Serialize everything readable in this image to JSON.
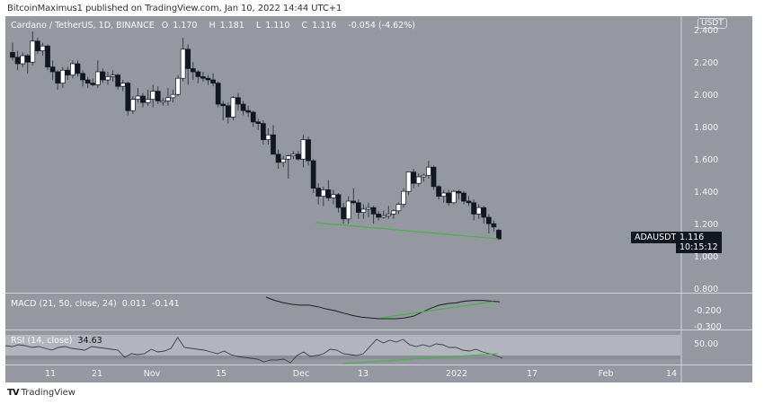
{
  "header": {
    "published": "BitcoinMaximus1 published on TradingView.com, Jan 10, 2022 14:44 UTC+1"
  },
  "legend": {
    "symbol": "Cardano / TetherUS, 1D, BINANCE",
    "open_label": "O",
    "open": "1.170",
    "high_label": "H",
    "high": "1.181",
    "low_label": "L",
    "low": "1.110",
    "close_label": "C",
    "close": "1.116",
    "change": "-0.054 (-4.62%)"
  },
  "price_axis": {
    "currency_badge": "USDT",
    "ticks": [
      "2.400",
      "2.200",
      "2.000",
      "1.800",
      "1.600",
      "1.400",
      "1.200",
      "1.000",
      "0.800"
    ],
    "current_symbol": "ADAUSDT",
    "current_price": "1.116",
    "countdown": "10:15:12"
  },
  "macd": {
    "label": "MACD (21, 50, close, 24)",
    "value1": "0.011",
    "value2": "-0.141",
    "axis_ticks": [
      "-0.200",
      "-0.300"
    ]
  },
  "rsi": {
    "label": "RSI (14, close)",
    "value": "34.63",
    "axis_ticks": [
      "50.00"
    ]
  },
  "time_axis": {
    "ticks": [
      "11",
      "21",
      "Nov",
      "15",
      "Dec",
      "13",
      "2022",
      "17",
      "Feb",
      "14"
    ]
  },
  "footer": {
    "logo_mark": "TV",
    "logo_text": "TradingView"
  },
  "colors": {
    "background": "#9598a1",
    "bull_body": "#ffffff",
    "bear_body": "#131722",
    "wick": "#3a3d45",
    "trendline": "#4caf50",
    "indicator_line": "#1e1e1e"
  },
  "chart_data": [
    {
      "type": "candlestick",
      "title": "Cardano / TetherUS, 1D, BINANCE",
      "xlabel": "",
      "ylabel": "USDT",
      "x_ticks": [
        "11",
        "21",
        "Nov",
        "15",
        "Dec",
        "13",
        "2022",
        "17",
        "Feb",
        "14"
      ],
      "ylim": [
        0.8,
        2.45
      ],
      "y_ticks": [
        2.4,
        2.2,
        2.0,
        1.8,
        1.6,
        1.4,
        1.2,
        1.0,
        0.8
      ],
      "candles": [
        [
          2.27,
          2.33,
          2.22,
          2.24
        ],
        [
          2.24,
          2.28,
          2.16,
          2.2
        ],
        [
          2.2,
          2.27,
          2.18,
          2.25
        ],
        [
          2.25,
          2.26,
          2.14,
          2.21
        ],
        [
          2.21,
          2.4,
          2.19,
          2.34
        ],
        [
          2.34,
          2.36,
          2.26,
          2.28
        ],
        [
          2.28,
          2.33,
          2.25,
          2.31
        ],
        [
          2.31,
          2.32,
          2.16,
          2.18
        ],
        [
          2.18,
          2.22,
          2.1,
          2.15
        ],
        [
          2.15,
          2.16,
          2.04,
          2.08
        ],
        [
          2.08,
          2.18,
          2.05,
          2.16
        ],
        [
          2.16,
          2.18,
          2.1,
          2.13
        ],
        [
          2.13,
          2.22,
          2.11,
          2.2
        ],
        [
          2.2,
          2.22,
          2.12,
          2.14
        ],
        [
          2.14,
          2.16,
          2.06,
          2.1
        ],
        [
          2.1,
          2.12,
          2.05,
          2.08
        ],
        [
          2.08,
          2.11,
          2.06,
          2.07
        ],
        [
          2.07,
          2.22,
          2.05,
          2.15
        ],
        [
          2.15,
          2.17,
          2.08,
          2.1
        ],
        [
          2.1,
          2.15,
          2.07,
          2.12
        ],
        [
          2.12,
          2.16,
          2.09,
          2.13
        ],
        [
          2.13,
          2.14,
          2.04,
          2.06
        ],
        [
          2.06,
          2.1,
          2.03,
          2.08
        ],
        [
          2.08,
          2.09,
          1.88,
          1.91
        ],
        [
          1.91,
          2.0,
          1.89,
          1.98
        ],
        [
          1.98,
          2.05,
          1.96,
          2.0
        ],
        [
          2.0,
          2.02,
          1.93,
          1.96
        ],
        [
          1.96,
          2.04,
          1.94,
          1.98
        ],
        [
          1.98,
          2.07,
          1.93,
          2.03
        ],
        [
          2.03,
          2.06,
          1.95,
          1.97
        ],
        [
          1.97,
          1.99,
          1.94,
          1.97
        ],
        [
          1.97,
          2.05,
          1.94,
          1.99
        ],
        [
          1.99,
          2.04,
          1.96,
          2.01
        ],
        [
          2.01,
          2.13,
          2.0,
          2.11
        ],
        [
          2.11,
          2.36,
          2.09,
          2.29
        ],
        [
          2.29,
          2.32,
          2.07,
          2.17
        ],
        [
          2.17,
          2.21,
          2.1,
          2.15
        ],
        [
          2.15,
          2.16,
          2.08,
          2.12
        ],
        [
          2.12,
          2.15,
          2.09,
          2.11
        ],
        [
          2.11,
          2.13,
          2.07,
          2.1
        ],
        [
          2.1,
          2.14,
          2.06,
          2.08
        ],
        [
          2.08,
          2.09,
          1.93,
          1.95
        ],
        [
          1.95,
          1.97,
          1.85,
          1.94
        ],
        [
          1.94,
          1.96,
          1.83,
          1.87
        ],
        [
          1.87,
          2.0,
          1.85,
          1.99
        ],
        [
          1.99,
          2.02,
          1.91,
          1.95
        ],
        [
          1.95,
          1.97,
          1.88,
          1.91
        ],
        [
          1.91,
          1.94,
          1.87,
          1.9
        ],
        [
          1.9,
          1.91,
          1.81,
          1.84
        ],
        [
          1.84,
          1.86,
          1.79,
          1.83
        ],
        [
          1.83,
          1.85,
          1.7,
          1.73
        ],
        [
          1.73,
          1.8,
          1.7,
          1.76
        ],
        [
          1.76,
          1.82,
          1.68,
          1.64
        ],
        [
          1.64,
          1.67,
          1.55,
          1.59
        ],
        [
          1.59,
          1.63,
          1.56,
          1.61
        ],
        [
          1.61,
          1.64,
          1.49,
          1.63
        ],
        [
          1.63,
          1.66,
          1.61,
          1.64
        ],
        [
          1.64,
          1.66,
          1.6,
          1.61
        ],
        [
          1.61,
          1.76,
          1.56,
          1.73
        ],
        [
          1.73,
          1.75,
          1.57,
          1.6
        ],
        [
          1.6,
          1.61,
          1.4,
          1.43
        ],
        [
          1.43,
          1.46,
          1.33,
          1.38
        ],
        [
          1.38,
          1.44,
          1.32,
          1.42
        ],
        [
          1.42,
          1.48,
          1.35,
          1.37
        ],
        [
          1.37,
          1.42,
          1.33,
          1.39
        ],
        [
          1.39,
          1.4,
          1.28,
          1.31
        ],
        [
          1.31,
          1.34,
          1.21,
          1.24
        ],
        [
          1.24,
          1.38,
          1.21,
          1.35
        ],
        [
          1.35,
          1.43,
          1.33,
          1.34
        ],
        [
          1.34,
          1.36,
          1.24,
          1.28
        ],
        [
          1.28,
          1.33,
          1.24,
          1.3
        ],
        [
          1.3,
          1.34,
          1.25,
          1.31
        ],
        [
          1.31,
          1.32,
          1.21,
          1.27
        ],
        [
          1.27,
          1.29,
          1.23,
          1.25
        ],
        [
          1.25,
          1.29,
          1.24,
          1.26
        ],
        [
          1.26,
          1.32,
          1.24,
          1.27
        ],
        [
          1.27,
          1.3,
          1.24,
          1.29
        ],
        [
          1.29,
          1.34,
          1.27,
          1.33
        ],
        [
          1.33,
          1.43,
          1.31,
          1.41
        ],
        [
          1.41,
          1.53,
          1.39,
          1.53
        ],
        [
          1.53,
          1.55,
          1.43,
          1.46
        ],
        [
          1.46,
          1.52,
          1.44,
          1.5
        ],
        [
          1.5,
          1.52,
          1.47,
          1.51
        ],
        [
          1.51,
          1.6,
          1.49,
          1.56
        ],
        [
          1.56,
          1.57,
          1.42,
          1.44
        ],
        [
          1.44,
          1.45,
          1.36,
          1.38
        ],
        [
          1.38,
          1.42,
          1.34,
          1.4
        ],
        [
          1.4,
          1.42,
          1.32,
          1.34
        ],
        [
          1.34,
          1.42,
          1.33,
          1.41
        ],
        [
          1.41,
          1.42,
          1.36,
          1.4
        ],
        [
          1.4,
          1.41,
          1.33,
          1.35
        ],
        [
          1.35,
          1.38,
          1.32,
          1.34
        ],
        [
          1.34,
          1.36,
          1.23,
          1.27
        ],
        [
          1.27,
          1.33,
          1.24,
          1.31
        ],
        [
          1.31,
          1.32,
          1.21,
          1.25
        ],
        [
          1.25,
          1.27,
          1.15,
          1.21
        ],
        [
          1.21,
          1.23,
          1.16,
          1.19
        ],
        [
          1.17,
          1.18,
          1.11,
          1.116
        ]
      ],
      "trendlines": [
        {
          "pane": "price",
          "color": "#4caf50",
          "from": [
            0.54,
            1.2
          ],
          "to": [
            0.99,
            1.11
          ]
        }
      ]
    },
    {
      "type": "line",
      "title": "MACD (21, 50, close, 24)",
      "values_shown": [
        0.011,
        -0.141
      ],
      "y_ticks": [
        -0.2,
        -0.3
      ],
      "series": [
        {
          "name": "MACD",
          "points": [
            0.02,
            -0.02,
            -0.05,
            -0.07,
            -0.08,
            -0.08,
            -0.1,
            -0.13,
            -0.15,
            -0.18,
            -0.21,
            -0.23,
            -0.24,
            -0.25,
            -0.25,
            -0.25,
            -0.24,
            -0.22,
            -0.17,
            -0.12,
            -0.08,
            -0.06,
            -0.05,
            -0.03,
            -0.02,
            -0.02,
            -0.03,
            -0.04
          ]
        }
      ],
      "trendlines": [
        {
          "color": "#4caf50",
          "from": [
            0.5,
            -0.26
          ],
          "to": [
            0.98,
            -0.07
          ]
        }
      ]
    },
    {
      "type": "line",
      "title": "RSI (14, close)",
      "value": 34.63,
      "y_ticks": [
        50
      ],
      "series": [
        {
          "name": "RSI",
          "points": [
            49,
            48,
            50,
            49,
            47,
            48,
            46,
            44,
            47,
            48,
            46,
            45,
            44,
            48,
            47,
            46,
            45,
            44,
            36,
            40,
            39,
            40,
            45,
            42,
            43,
            46,
            58,
            47,
            46,
            45,
            44,
            42,
            40,
            43,
            39,
            37,
            36,
            35,
            34,
            31,
            33,
            33,
            34,
            30,
            38,
            42,
            37,
            38,
            40,
            45,
            44,
            40,
            39,
            38,
            40,
            48,
            56,
            52,
            55,
            53,
            56,
            50,
            48,
            50,
            48,
            51,
            50,
            47,
            47,
            44,
            43,
            45,
            42,
            40,
            38,
            35
          ]
        }
      ],
      "trendlines": [
        {
          "color": "#4caf50",
          "from": [
            0.45,
            31
          ],
          "to": [
            0.99,
            37
          ]
        }
      ]
    }
  ]
}
